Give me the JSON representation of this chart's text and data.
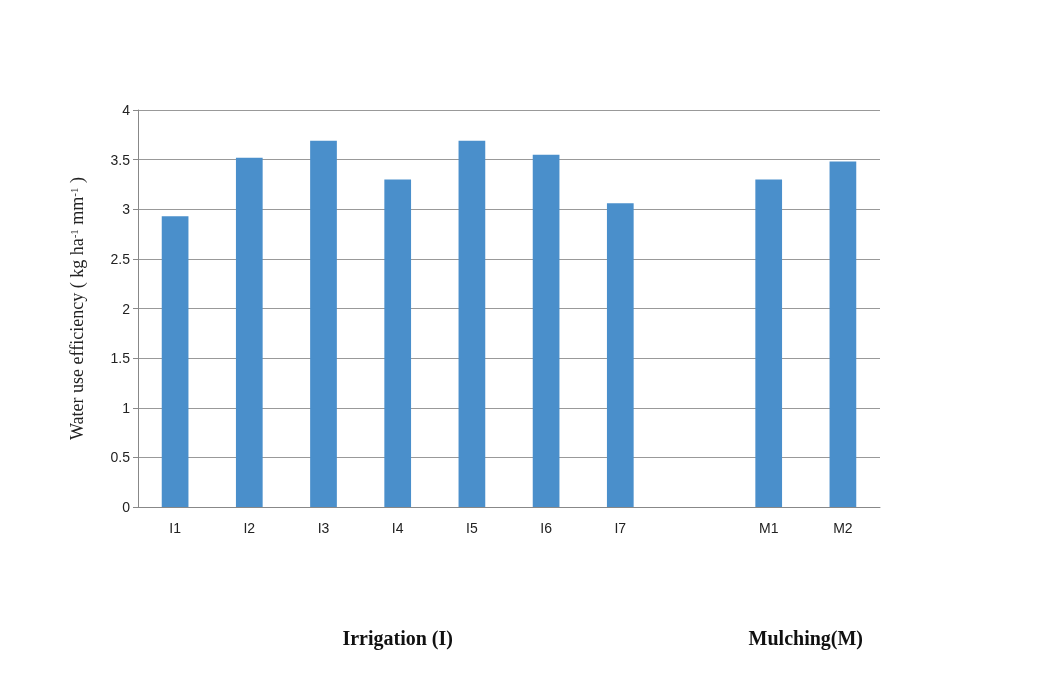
{
  "chart_data": {
    "type": "bar",
    "ylabel": "Water use efficiency ( kg ha$^{-1}$ mm$^{-1}$ )",
    "categories": [
      "I1",
      "I2",
      "I3",
      "I4",
      "I5",
      "I6",
      "I7",
      null,
      "M1",
      "M2"
    ],
    "values": [
      2.93,
      3.52,
      3.69,
      3.3,
      3.69,
      3.55,
      3.06,
      null,
      3.3,
      3.48
    ],
    "color": "#4a8fcb",
    "ylim": [
      0,
      4
    ],
    "yticks": [
      0,
      0.5,
      1,
      1.5,
      2,
      2.5,
      3,
      3.5,
      4
    ],
    "grid": "y",
    "annotations": [
      "Irrigation (I)",
      "Mulching(M)"
    ]
  }
}
